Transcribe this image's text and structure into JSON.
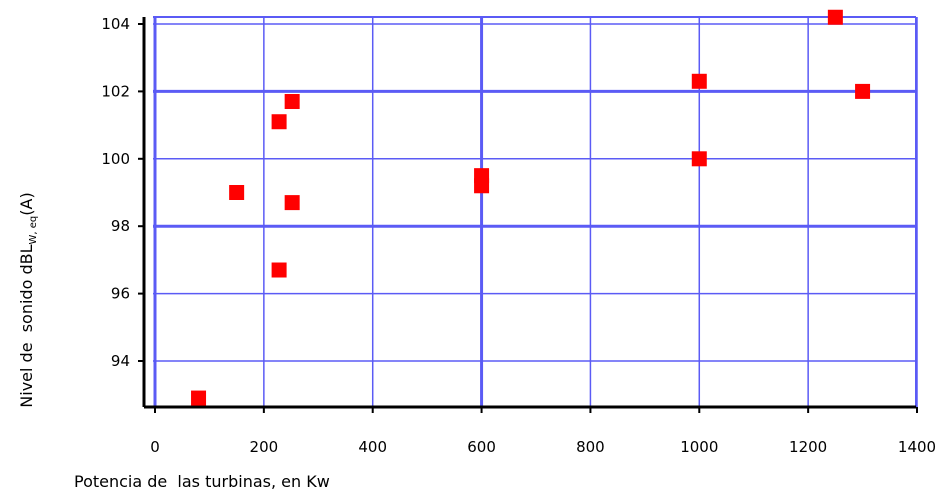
{
  "chart_data": {
    "type": "scatter",
    "xlabel": "Potencia de  las turbinas, en Kw",
    "ylabel": {
      "main": "Nivel de  sonido dBL",
      "subscript": "W, eq",
      "suffix": "(A)"
    },
    "xlim": [
      0,
      1400
    ],
    "ylim": [
      92.7,
      104.2
    ],
    "x_ticks": [
      0,
      200,
      400,
      600,
      800,
      1000,
      1200,
      1400
    ],
    "y_ticks": [
      94,
      96,
      98,
      100,
      102,
      104
    ],
    "grid": true,
    "marker_color": "#ff0000",
    "grid_color": "#5b5bf5",
    "points": [
      {
        "x": 80,
        "y": 92.9
      },
      {
        "x": 150,
        "y": 99.0
      },
      {
        "x": 228,
        "y": 96.7
      },
      {
        "x": 228,
        "y": 101.1
      },
      {
        "x": 252,
        "y": 101.7
      },
      {
        "x": 252,
        "y": 98.7
      },
      {
        "x": 600,
        "y": 99.2
      },
      {
        "x": 600,
        "y": 99.5
      },
      {
        "x": 1000,
        "y": 100.0
      },
      {
        "x": 1000,
        "y": 102.3
      },
      {
        "x": 1250,
        "y": 104.2
      },
      {
        "x": 1300,
        "y": 102.0
      }
    ]
  }
}
